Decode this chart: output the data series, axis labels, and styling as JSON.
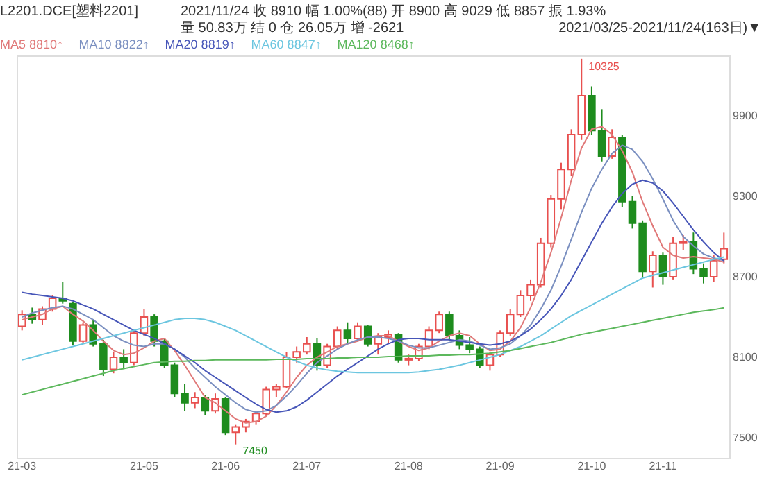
{
  "chart_data": {
    "type": "candlestick",
    "title": "L2201.DCE[塑料2201]",
    "annotations": [
      "2021/11/24 收 8910 幅 1.00%(88) 开 8900 高 9029 低 8857 振 1.93% 量 50.83万 结 0 仓 26.05万 增 -2621",
      "2021/03/25-2021/11/24(163日)▼",
      "10325",
      "7450"
    ],
    "categories": [
      "21-03",
      null,
      null,
      null,
      null,
      null,
      null,
      null,
      null,
      null,
      null,
      null,
      "21-05",
      null,
      null,
      null,
      null,
      null,
      null,
      null,
      "21-06",
      null,
      null,
      null,
      null,
      null,
      null,
      null,
      "21-07",
      null,
      null,
      null,
      null,
      null,
      null,
      null,
      null,
      null,
      "21-08",
      null,
      null,
      null,
      null,
      null,
      null,
      null,
      null,
      "21-09",
      null,
      null,
      null,
      null,
      null,
      null,
      null,
      null,
      "21-10",
      null,
      null,
      null,
      null,
      null,
      null,
      "21-11",
      null,
      null,
      null,
      null,
      null,
      null
    ],
    "ohlc": [
      [
        8330,
        8450,
        8300,
        8420
      ],
      [
        8420,
        8470,
        8350,
        8380
      ],
      [
        8380,
        8480,
        8340,
        8460
      ],
      [
        8460,
        8560,
        8440,
        8540
      ],
      [
        8540,
        8660,
        8500,
        8520
      ],
      [
        8500,
        8510,
        8190,
        8220
      ],
      [
        8220,
        8360,
        8200,
        8340
      ],
      [
        8340,
        8380,
        8180,
        8200
      ],
      [
        8200,
        8230,
        7960,
        8010
      ],
      [
        8010,
        8140,
        7980,
        8100
      ],
      [
        8100,
        8160,
        8020,
        8060
      ],
      [
        8060,
        8300,
        8040,
        8280
      ],
      [
        8280,
        8460,
        8260,
        8400
      ],
      [
        8400,
        8420,
        8180,
        8220
      ],
      [
        8220,
        8240,
        8020,
        8040
      ],
      [
        8040,
        8060,
        7800,
        7830
      ],
      [
        7830,
        7900,
        7700,
        7760
      ],
      [
        7760,
        7840,
        7720,
        7800
      ],
      [
        7800,
        7820,
        7670,
        7700
      ],
      [
        7700,
        7830,
        7680,
        7790
      ],
      [
        7790,
        7800,
        7520,
        7540
      ],
      [
        7540,
        7600,
        7450,
        7580
      ],
      [
        7580,
        7640,
        7540,
        7620
      ],
      [
        7620,
        7700,
        7600,
        7680
      ],
      [
        7680,
        7880,
        7660,
        7860
      ],
      [
        7860,
        7900,
        7800,
        7880
      ],
      [
        7880,
        8140,
        7870,
        8100
      ],
      [
        8100,
        8180,
        8060,
        8140
      ],
      [
        8140,
        8250,
        8120,
        8200
      ],
      [
        8200,
        8240,
        8000,
        8040
      ],
      [
        8040,
        8200,
        8020,
        8180
      ],
      [
        8180,
        8330,
        8160,
        8300
      ],
      [
        8300,
        8360,
        8200,
        8240
      ],
      [
        8240,
        8360,
        8220,
        8330
      ],
      [
        8330,
        8340,
        8180,
        8200
      ],
      [
        8200,
        8280,
        8120,
        8250
      ],
      [
        8250,
        8300,
        8200,
        8270
      ],
      [
        8270,
        8280,
        8060,
        8080
      ],
      [
        8080,
        8120,
        8040,
        8090
      ],
      [
        8090,
        8200,
        8070,
        8180
      ],
      [
        8180,
        8330,
        8160,
        8300
      ],
      [
        8300,
        8440,
        8280,
        8420
      ],
      [
        8420,
        8440,
        8220,
        8260
      ],
      [
        8260,
        8300,
        8160,
        8190
      ],
      [
        8190,
        8250,
        8130,
        8160
      ],
      [
        8160,
        8180,
        8020,
        8040
      ],
      [
        8040,
        8140,
        8000,
        8120
      ],
      [
        8120,
        8300,
        8100,
        8280
      ],
      [
        8280,
        8460,
        8260,
        8420
      ],
      [
        8420,
        8600,
        8400,
        8560
      ],
      [
        8560,
        8680,
        8520,
        8640
      ],
      [
        8640,
        8990,
        8620,
        8950
      ],
      [
        8950,
        9310,
        8920,
        9280
      ],
      [
        9280,
        9550,
        9200,
        9500
      ],
      [
        9500,
        9800,
        9450,
        9760
      ],
      [
        9760,
        10325,
        9720,
        10050
      ],
      [
        10050,
        10120,
        9760,
        9790
      ],
      [
        9790,
        9950,
        9560,
        9600
      ],
      [
        9600,
        9800,
        9580,
        9740
      ],
      [
        9740,
        9760,
        9220,
        9260
      ],
      [
        9260,
        9300,
        9060,
        9100
      ],
      [
        9100,
        9120,
        8700,
        8740
      ],
      [
        8740,
        8890,
        8620,
        8860
      ],
      [
        8860,
        8880,
        8640,
        8700
      ],
      [
        8700,
        9000,
        8680,
        8950
      ],
      [
        8950,
        9010,
        8900,
        8960
      ],
      [
        8960,
        9030,
        8720,
        8760
      ],
      [
        8760,
        8800,
        8650,
        8700
      ],
      [
        8700,
        8860,
        8660,
        8820
      ],
      [
        8830,
        9029,
        8800,
        8910
      ]
    ],
    "colors": [
      "#e8504f",
      "#1e8c1e",
      "#e8504f",
      "#e8504f",
      "#1e8c1e",
      "#1e8c1e",
      "#e8504f",
      "#1e8c1e",
      "#1e8c1e",
      "#e8504f",
      "#1e8c1e",
      "#e8504f",
      "#e8504f",
      "#1e8c1e",
      "#1e8c1e",
      "#1e8c1e",
      "#1e8c1e",
      "#e8504f",
      "#1e8c1e",
      "#e8504f",
      "#1e8c1e",
      "#e8504f",
      "#e8504f",
      "#e8504f",
      "#e8504f",
      "#e8504f",
      "#e8504f",
      "#e8504f",
      "#e8504f",
      "#1e8c1e",
      "#e8504f",
      "#e8504f",
      "#1e8c1e",
      "#e8504f",
      "#1e8c1e",
      "#e8504f",
      "#e8504f",
      "#1e8c1e",
      "#e8504f",
      "#e8504f",
      "#e8504f",
      "#e8504f",
      "#1e8c1e",
      "#1e8c1e",
      "#1e8c1e",
      "#1e8c1e",
      "#e8504f",
      "#e8504f",
      "#e8504f",
      "#e8504f",
      "#e8504f",
      "#e8504f",
      "#e8504f",
      "#e8504f",
      "#e8504f",
      "#e8504f",
      "#1e8c1e",
      "#1e8c1e",
      "#e8504f",
      "#1e8c1e",
      "#1e8c1e",
      "#1e8c1e",
      "#e8504f",
      "#1e8c1e",
      "#e8504f",
      "#e8504f",
      "#1e8c1e",
      "#1e8c1e",
      "#e8504f",
      "#e8504f"
    ],
    "series": [
      {
        "name": "MA5 8810↑",
        "type": "line",
        "color": "#e07878",
        "values": [
          8380,
          8400,
          8420,
          8460,
          8480,
          8420,
          8370,
          8300,
          8220,
          8150,
          8120,
          8130,
          8170,
          8220,
          8240,
          8150,
          8040,
          7920,
          7800,
          7760,
          7700,
          7640,
          7610,
          7620,
          7660,
          7740,
          7840,
          7950,
          8040,
          8100,
          8140,
          8180,
          8200,
          8220,
          8250,
          8260,
          8260,
          8220,
          8180,
          8150,
          8170,
          8220,
          8260,
          8280,
          8260,
          8200,
          8150,
          8160,
          8220,
          8320,
          8470,
          8660,
          8880,
          9140,
          9420,
          9660,
          9800,
          9820,
          9760,
          9640,
          9480,
          9260,
          9080,
          8920,
          8860,
          8840,
          8850,
          8840,
          8830,
          8810
        ]
      },
      {
        "name": "MA10 8822↑",
        "type": "line",
        "color": "#7a8fc0",
        "values": [
          8400,
          8430,
          8450,
          8470,
          8480,
          8460,
          8420,
          8380,
          8320,
          8260,
          8220,
          8190,
          8180,
          8200,
          8200,
          8160,
          8100,
          8020,
          7950,
          7880,
          7820,
          7760,
          7710,
          7690,
          7700,
          7740,
          7810,
          7890,
          7980,
          8060,
          8110,
          8160,
          8200,
          8230,
          8250,
          8250,
          8240,
          8220,
          8190,
          8170,
          8170,
          8190,
          8210,
          8230,
          8220,
          8190,
          8160,
          8170,
          8200,
          8260,
          8340,
          8460,
          8600,
          8780,
          8980,
          9180,
          9360,
          9500,
          9620,
          9680,
          9650,
          9560,
          9430,
          9280,
          9120,
          9000,
          8930,
          8870,
          8840,
          8822
        ]
      },
      {
        "name": "MA20 8819↑",
        "type": "line",
        "color": "#4655b8",
        "values": [
          8584,
          8570,
          8560,
          8550,
          8540,
          8520,
          8490,
          8460,
          8420,
          8380,
          8340,
          8300,
          8270,
          8240,
          8200,
          8160,
          8110,
          8060,
          8000,
          7950,
          7900,
          7850,
          7800,
          7750,
          7710,
          7690,
          7700,
          7730,
          7780,
          7840,
          7900,
          7960,
          8010,
          8060,
          8110,
          8160,
          8200,
          8230,
          8240,
          8240,
          8230,
          8230,
          8230,
          8220,
          8210,
          8200,
          8190,
          8200,
          8220,
          8260,
          8310,
          8380,
          8460,
          8560,
          8680,
          8820,
          8960,
          9100,
          9220,
          9320,
          9390,
          9420,
          9400,
          9340,
          9250,
          9150,
          9050,
          8960,
          8880,
          8819
        ]
      },
      {
        "name": "MA60 8847↑",
        "type": "line",
        "color": "#6cc6e0",
        "values": [
          8080,
          8100,
          8120,
          8140,
          8160,
          8180,
          8200,
          8220,
          8240,
          8260,
          8280,
          8300,
          8320,
          8340,
          8360,
          8380,
          8390,
          8390,
          8380,
          8360,
          8330,
          8300,
          8260,
          8220,
          8180,
          8140,
          8100,
          8070,
          8040,
          8020,
          8005,
          7995,
          7990,
          7985,
          7985,
          7985,
          7985,
          7985,
          7985,
          7990,
          8000,
          8010,
          8025,
          8040,
          8060,
          8080,
          8100,
          8120,
          8150,
          8180,
          8220,
          8260,
          8310,
          8360,
          8410,
          8450,
          8490,
          8530,
          8570,
          8610,
          8650,
          8690,
          8710,
          8730,
          8750,
          8770,
          8790,
          8810,
          8830,
          8847
        ]
      },
      {
        "name": "MA120 8468↑",
        "type": "line",
        "color": "#5cb85c",
        "values": [
          7820,
          7840,
          7860,
          7880,
          7900,
          7920,
          7940,
          7960,
          7980,
          8000,
          8015,
          8030,
          8045,
          8060,
          8065,
          8070,
          8070,
          8075,
          8075,
          8080,
          8080,
          8080,
          8080,
          8080,
          8080,
          8085,
          8085,
          8085,
          8090,
          8090,
          8090,
          8095,
          8095,
          8100,
          8100,
          8100,
          8105,
          8105,
          8110,
          8110,
          8110,
          8115,
          8115,
          8120,
          8120,
          8125,
          8130,
          8140,
          8150,
          8165,
          8180,
          8195,
          8210,
          8230,
          8250,
          8270,
          8285,
          8300,
          8315,
          8330,
          8345,
          8360,
          8375,
          8390,
          8405,
          8420,
          8435,
          8445,
          8455,
          8468
        ]
      }
    ],
    "ylim": [
      7350,
      10350
    ],
    "yticks": [
      7500,
      8100,
      8700,
      9300,
      9900
    ],
    "legend": "top left"
  }
}
